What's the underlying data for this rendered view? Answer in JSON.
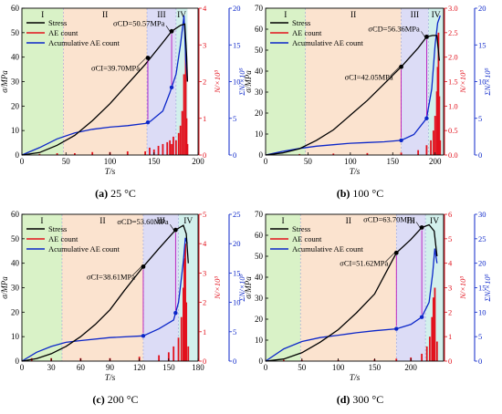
{
  "chart_data": [
    {
      "type": "line",
      "caption": "(a) 25 °C",
      "xlabel": "T/s",
      "ylabel": "σ/MPa",
      "y2label": "N/×10³",
      "y3label": "ΣN/×10⁵",
      "xlim": [
        0,
        200
      ],
      "xticks": [
        0,
        50,
        100,
        150,
        200
      ],
      "ylim": [
        0,
        60
      ],
      "yticks": [
        0,
        10,
        20,
        30,
        40,
        50,
        60
      ],
      "y2lim": [
        0,
        4
      ],
      "y2ticks": [
        0,
        1,
        2,
        3,
        4
      ],
      "y3lim": [
        0,
        20
      ],
      "y3ticks": [
        0,
        5,
        10,
        15,
        20
      ],
      "stages": [
        {
          "label": "I",
          "from": 0,
          "to": 47,
          "color": "#d9f2c7"
        },
        {
          "label": "II",
          "from": 47,
          "to": 142,
          "color": "#fbe3cf"
        },
        {
          "label": "III",
          "from": 142,
          "to": 175,
          "color": "#dcdcf6"
        },
        {
          "label": "IV",
          "from": 175,
          "to": 188,
          "color": "#d2f0ec"
        }
      ],
      "legend": [
        "Stress",
        "AE count",
        "Acumulative AE count"
      ],
      "series": [
        {
          "name": "Stress",
          "color": "#000000",
          "axis": "y",
          "x": [
            0,
            20,
            40,
            60,
            80,
            100,
            120,
            140,
            160,
            170,
            180,
            185,
            187,
            188
          ],
          "y": [
            0,
            1,
            4,
            8,
            14,
            21,
            29,
            37,
            46,
            50.57,
            53,
            53.5,
            40,
            30
          ]
        },
        {
          "name": "Acumulative AE count",
          "color": "#0b26c9",
          "axis": "y3",
          "x": [
            0,
            20,
            40,
            60,
            80,
            100,
            120,
            140,
            146,
            160,
            168,
            175,
            180,
            184,
            186,
            188
          ],
          "y": [
            0,
            1,
            2.2,
            3,
            3.5,
            3.8,
            4.0,
            4.3,
            4.6,
            6,
            8.5,
            11,
            15,
            19,
            13,
            10
          ]
        },
        {
          "name": "AE count",
          "color": "#e2111c",
          "axis": "y2",
          "x": [
            20,
            40,
            60,
            80,
            100,
            120,
            140,
            145,
            150,
            155,
            160,
            165,
            168,
            170,
            172,
            175,
            178,
            180,
            182,
            184,
            186,
            187,
            188
          ],
          "y": [
            0.03,
            0.05,
            0.05,
            0.08,
            0.08,
            0.1,
            0.1,
            0.2,
            0.15,
            0.25,
            0.3,
            0.35,
            0.4,
            0.3,
            0.5,
            0.4,
            0.6,
            0.8,
            1.2,
            2.2,
            3.0,
            1.0,
            0.3
          ]
        }
      ],
      "points": [
        {
          "label": "σCI=39.70MPa",
          "x": 143,
          "y": 39.7
        },
        {
          "label": "σCD=50.57MPa",
          "x": 170,
          "y": 50.57
        }
      ]
    },
    {
      "type": "line",
      "caption": "(b) 100 °C",
      "xlabel": "T/s",
      "ylabel": "σ/MPa",
      "y2label": "N/×10³",
      "y3label": "ΣN/×10⁵",
      "xlim": [
        0,
        210
      ],
      "xticks": [
        0,
        50,
        100,
        150,
        200
      ],
      "ylim": [
        0,
        70
      ],
      "yticks": [
        0,
        10,
        20,
        30,
        40,
        50,
        60,
        70
      ],
      "y2lim": [
        0,
        3.0
      ],
      "y2ticks": [
        0.0,
        0.5,
        1.0,
        1.5,
        2.0,
        2.5,
        3.0
      ],
      "y3lim": [
        0,
        20
      ],
      "y3ticks": [
        0,
        5,
        10,
        15,
        20
      ],
      "stages": [
        {
          "label": "I",
          "from": 0,
          "to": 47,
          "color": "#d9f2c7"
        },
        {
          "label": "II",
          "from": 47,
          "to": 160,
          "color": "#fbe3cf"
        },
        {
          "label": "III",
          "from": 160,
          "to": 192,
          "color": "#dcdcf6"
        },
        {
          "label": "IV",
          "from": 192,
          "to": 210,
          "color": "#d2f0ec"
        }
      ],
      "legend": [
        "Stress",
        "AE count",
        "Acumulative AE count"
      ],
      "series": [
        {
          "name": "Stress",
          "color": "#000000",
          "axis": "y",
          "x": [
            0,
            20,
            40,
            60,
            80,
            100,
            120,
            140,
            160,
            180,
            190,
            197,
            202,
            205
          ],
          "y": [
            0,
            1,
            3,
            7,
            12,
            19,
            26,
            34,
            42.05,
            51,
            56.36,
            57,
            57,
            45
          ]
        },
        {
          "name": "Acumulative AE count",
          "color": "#0b26c9",
          "axis": "y3",
          "x": [
            0,
            20,
            40,
            60,
            80,
            100,
            120,
            140,
            160,
            175,
            190,
            196,
            200,
            203,
            206
          ],
          "y": [
            0,
            0.5,
            0.9,
            1.2,
            1.4,
            1.6,
            1.7,
            1.8,
            2.0,
            2.8,
            5,
            9,
            15,
            18,
            19
          ]
        },
        {
          "name": "AE count",
          "color": "#e2111c",
          "axis": "y2",
          "x": [
            40,
            80,
            120,
            160,
            180,
            190,
            195,
            198,
            200,
            202,
            203,
            204,
            205,
            206
          ],
          "y": [
            0.02,
            0.03,
            0.04,
            0.05,
            0.1,
            0.2,
            0.3,
            0.5,
            0.8,
            1.3,
            1.8,
            2.5,
            1.2,
            0.3
          ]
        }
      ],
      "points": [
        {
          "label": "σCI=42.05MPa",
          "x": 160,
          "y": 42.05
        },
        {
          "label": "σCD=56.36MPa",
          "x": 190,
          "y": 56.36
        }
      ]
    },
    {
      "type": "line",
      "caption": "(c) 200 °C",
      "xlabel": "T/s",
      "ylabel": "σ/MPa",
      "y2label": "N/×10³",
      "y3label": "ΣN/×10⁵",
      "xlim": [
        0,
        180
      ],
      "xticks": [
        0,
        30,
        60,
        90,
        120,
        150,
        180
      ],
      "ylim": [
        0,
        60
      ],
      "yticks": [
        0,
        10,
        20,
        30,
        40,
        50,
        60
      ],
      "y2lim": [
        0,
        5
      ],
      "y2ticks": [
        0,
        1,
        2,
        3,
        4,
        5
      ],
      "y3lim": [
        0,
        25
      ],
      "y3ticks": [
        0,
        5,
        10,
        15,
        20,
        25
      ],
      "stages": [
        {
          "label": "I",
          "from": 0,
          "to": 41,
          "color": "#d9f2c7"
        },
        {
          "label": "II",
          "from": 41,
          "to": 124,
          "color": "#fbe3cf"
        },
        {
          "label": "III",
          "from": 124,
          "to": 160,
          "color": "#dcdcf6"
        },
        {
          "label": "IV",
          "from": 160,
          "to": 180,
          "color": "#d2f0ec"
        }
      ],
      "legend": [
        "Stress",
        "AE count",
        "Acumulative AE count"
      ],
      "series": [
        {
          "name": "Stress",
          "color": "#000000",
          "axis": "y",
          "x": [
            0,
            15,
            30,
            45,
            60,
            75,
            90,
            105,
            124,
            140,
            157,
            165,
            168,
            170
          ],
          "y": [
            0,
            1,
            3,
            6,
            10,
            15,
            21,
            29,
            38.61,
            46,
            53.6,
            55.5,
            52,
            40
          ]
        },
        {
          "name": "Acumulative AE count",
          "color": "#0b26c9",
          "axis": "y3",
          "x": [
            0,
            15,
            30,
            45,
            60,
            90,
            124,
            140,
            155,
            160,
            165,
            167,
            169
          ],
          "y": [
            0,
            1.5,
            2.5,
            3.2,
            3.5,
            4.0,
            4.3,
            5.5,
            7,
            10,
            17,
            21,
            20
          ]
        },
        {
          "name": "AE count",
          "color": "#e2111c",
          "axis": "y2",
          "x": [
            10,
            30,
            60,
            90,
            120,
            140,
            150,
            155,
            160,
            163,
            165,
            166,
            167,
            168,
            170
          ],
          "y": [
            0.1,
            0.1,
            0.1,
            0.1,
            0.15,
            0.2,
            0.3,
            0.5,
            0.8,
            1.5,
            2.5,
            3.5,
            4.0,
            2.0,
            0.5
          ]
        }
      ],
      "points": [
        {
          "label": "σCI=38.61MPa",
          "x": 124,
          "y": 38.61
        },
        {
          "label": "σCD=53.60MPa",
          "x": 157,
          "y": 53.6
        }
      ]
    },
    {
      "type": "line",
      "caption": "(d) 300 °C",
      "xlabel": "T/s",
      "ylabel": "σ/MPa",
      "y2label": "N/×10³",
      "y3label": "ΣN/×10⁵",
      "xlim": [
        0,
        245
      ],
      "xticks": [
        0,
        50,
        100,
        150,
        200
      ],
      "ylim": [
        0,
        70
      ],
      "yticks": [
        0,
        10,
        20,
        30,
        40,
        50,
        60,
        70
      ],
      "y2lim": [
        0,
        6
      ],
      "y2ticks": [
        0,
        1,
        2,
        3,
        4,
        5,
        6
      ],
      "y3lim": [
        0,
        30
      ],
      "y3ticks": [
        0,
        5,
        10,
        15,
        20,
        25,
        30
      ],
      "stages": [
        {
          "label": "I",
          "from": 0,
          "to": 48,
          "color": "#d9f2c7"
        },
        {
          "label": "II",
          "from": 48,
          "to": 180,
          "color": "#fbe3cf"
        },
        {
          "label": "III",
          "from": 180,
          "to": 220,
          "color": "#dcdcf6"
        },
        {
          "label": "IV",
          "from": 220,
          "to": 245,
          "color": "#d2f0ec"
        }
      ],
      "legend": [
        "Stress",
        "AE count",
        "Acumulative AE count"
      ],
      "series": [
        {
          "name": "Stress",
          "color": "#000000",
          "axis": "y",
          "x": [
            0,
            25,
            50,
            75,
            100,
            125,
            150,
            180,
            200,
            215,
            225,
            232,
            236
          ],
          "y": [
            0,
            1,
            4,
            9,
            15,
            23,
            32,
            51.62,
            58,
            63.7,
            65,
            62,
            50
          ]
        },
        {
          "name": "Acumulative AE count",
          "color": "#0b26c9",
          "axis": "y3",
          "x": [
            0,
            25,
            50,
            75,
            100,
            125,
            150,
            180,
            200,
            215,
            225,
            230,
            233,
            236
          ],
          "y": [
            0,
            2.5,
            4.0,
            4.8,
            5.3,
            5.8,
            6.2,
            6.6,
            7.5,
            9,
            12,
            18,
            23,
            20
          ]
        },
        {
          "name": "AE count",
          "color": "#e2111c",
          "axis": "y2",
          "x": [
            25,
            50,
            100,
            150,
            180,
            200,
            215,
            222,
            226,
            229,
            231,
            233,
            236
          ],
          "y": [
            0.05,
            0.05,
            0.05,
            0.08,
            0.1,
            0.15,
            0.3,
            0.6,
            1.0,
            1.8,
            2.6,
            3.0,
            0.8
          ]
        }
      ],
      "points": [
        {
          "label": "σCI=51.62MPa",
          "x": 180,
          "y": 51.62
        },
        {
          "label": "σCD=63.70MPa",
          "x": 215,
          "y": 63.7
        }
      ]
    }
  ]
}
